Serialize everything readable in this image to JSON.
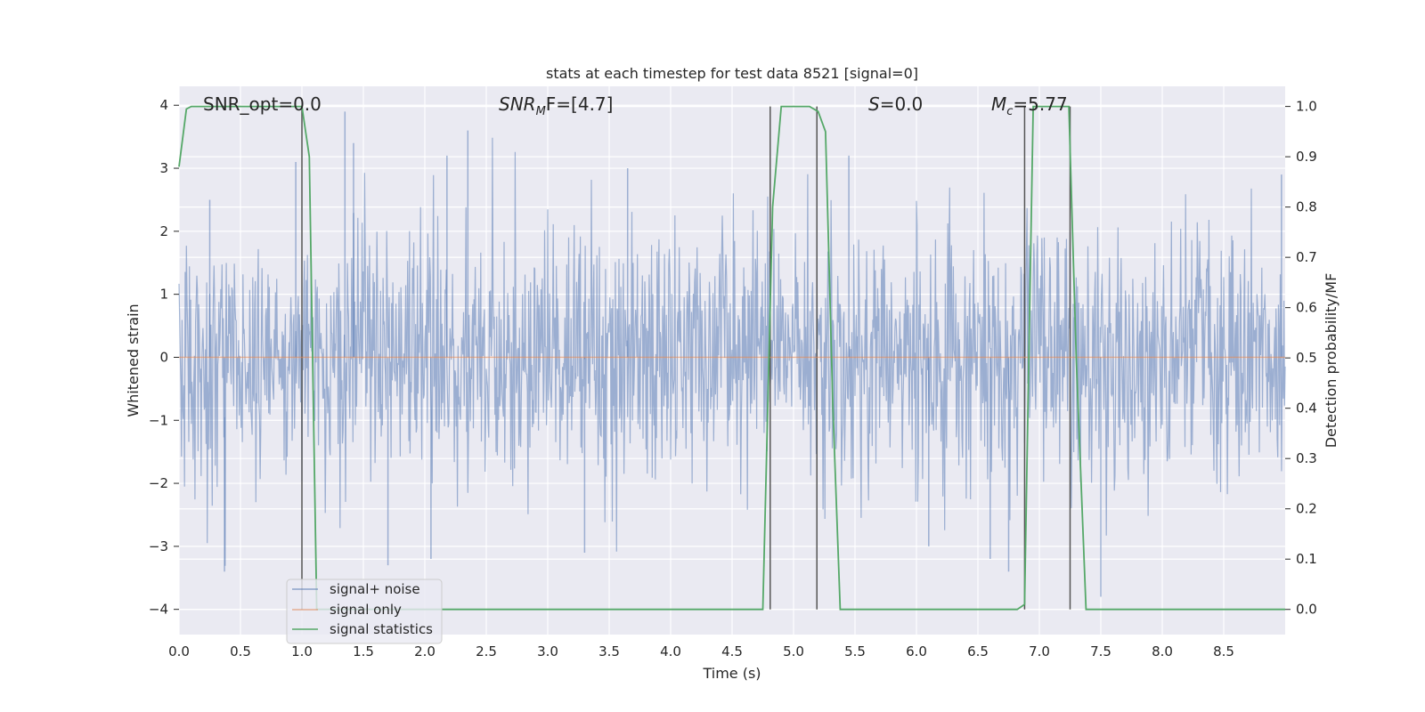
{
  "chart_data": {
    "type": "line",
    "title": "stats at each timestep for test data 8521 [signal=0]",
    "xlabel": "Time (s)",
    "ylabel": "Whitened strain",
    "y2label": "Detection probability/MF",
    "xlim": [
      0.0,
      9.0
    ],
    "ylim": [
      -4.4,
      4.3
    ],
    "y2lim": [
      -0.05,
      1.04
    ],
    "xticks": [
      "0.0",
      "0.5",
      "1.0",
      "1.5",
      "2.0",
      "2.5",
      "3.0",
      "3.5",
      "4.0",
      "4.5",
      "5.0",
      "5.5",
      "6.0",
      "6.5",
      "7.0",
      "7.5",
      "8.0",
      "8.5"
    ],
    "yticks": [
      "4",
      "3",
      "2",
      "1",
      "0",
      "−1",
      "−2",
      "−3",
      "−4"
    ],
    "y2ticks": [
      "1.0",
      "0.9",
      "0.8",
      "0.7",
      "0.6",
      "0.5",
      "0.4",
      "0.3",
      "0.2",
      "0.1",
      "0.0"
    ],
    "grid": true,
    "legend_placement": "lower-left",
    "annotations": {
      "snr_opt": "SNR_opt=0.0",
      "snr_mf_sym": "SNR",
      "snr_mf_sub": "M",
      "snr_mf_rest": "F=[4.7]",
      "s_sym": "S",
      "s_rest": "=0.0",
      "mc_sym": "M",
      "mc_sub": "c",
      "mc_rest": "=5.77"
    },
    "series": [
      {
        "name": "signal+ noise",
        "color": "#4c72b0",
        "description_range": [
          -3.5,
          3.9
        ],
        "peaks": [
          {
            "x": 0.25,
            "y": 2.5
          },
          {
            "x": 0.37,
            "y": -3.4
          },
          {
            "x": 0.95,
            "y": 3.1
          },
          {
            "x": 1.35,
            "y": 3.9
          },
          {
            "x": 1.42,
            "y": 3.4
          },
          {
            "x": 1.7,
            "y": -3.3
          },
          {
            "x": 2.05,
            "y": -3.2
          },
          {
            "x": 2.18,
            "y": 3.2
          },
          {
            "x": 2.35,
            "y": 3.6
          },
          {
            "x": 3.3,
            "y": -3.1
          },
          {
            "x": 3.65,
            "y": 3.0
          },
          {
            "x": 5.45,
            "y": 3.2
          },
          {
            "x": 6.1,
            "y": -3.0
          },
          {
            "x": 6.6,
            "y": -3.2
          },
          {
            "x": 6.75,
            "y": -3.4
          },
          {
            "x": 7.5,
            "y": -3.8
          },
          {
            "x": 8.97,
            "y": 2.9
          }
        ]
      },
      {
        "name": "signal only",
        "color": "#dd8452",
        "x": [
          0.0,
          9.0
        ],
        "y": [
          0.0,
          0.0
        ]
      },
      {
        "name": "signal statistics",
        "color": "#55a868",
        "axis": "right",
        "x": [
          0.0,
          0.06,
          0.1,
          0.15,
          0.95,
          1.0,
          1.06,
          1.12,
          4.75,
          4.83,
          4.9,
          5.13,
          5.2,
          5.26,
          5.32,
          5.38,
          6.82,
          6.88,
          6.9,
          6.95,
          7.24,
          7.3,
          7.38,
          9.0
        ],
        "y": [
          0.88,
          0.995,
          1.0,
          1.0,
          1.0,
          1.0,
          0.9,
          0.0,
          0.0,
          0.8,
          1.0,
          1.0,
          0.99,
          0.95,
          0.4,
          0.0,
          0.0,
          0.01,
          0.3,
          1.0,
          1.0,
          0.5,
          0.0,
          0.0
        ]
      }
    ],
    "vertical_markers": [
      1.0,
      4.81,
      5.19,
      6.88,
      7.25
    ]
  }
}
